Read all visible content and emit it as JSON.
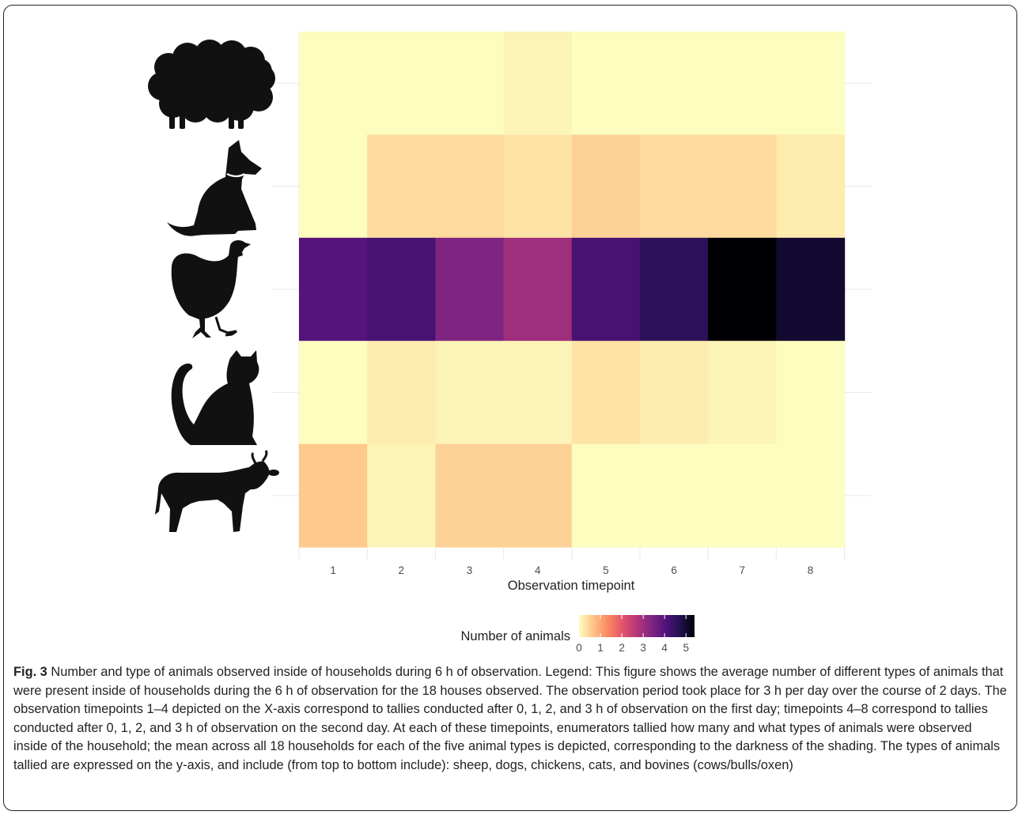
{
  "chart_data": {
    "type": "heatmap",
    "xlabel": "Observation timepoint",
    "x": [
      "1",
      "2",
      "3",
      "4",
      "5",
      "6",
      "7",
      "8"
    ],
    "rows": [
      {
        "icon": "sheep-icon",
        "values": [
          0.0,
          0.0,
          0.0,
          0.1,
          0.0,
          0.0,
          0.0,
          0.0
        ]
      },
      {
        "icon": "dog-icon",
        "values": [
          0.0,
          0.4,
          0.4,
          0.3,
          0.5,
          0.4,
          0.4,
          0.2
        ]
      },
      {
        "icon": "chicken-icon",
        "values": [
          4.0,
          4.2,
          3.4,
          3.0,
          4.2,
          4.6,
          5.4,
          5.0
        ]
      },
      {
        "icon": "cat-icon",
        "values": [
          0.0,
          0.2,
          0.1,
          0.1,
          0.3,
          0.2,
          0.1,
          0.0
        ]
      },
      {
        "icon": "cow-icon",
        "values": [
          0.6,
          0.1,
          0.5,
          0.5,
          0.0,
          0.0,
          0.0,
          0.0
        ]
      }
    ],
    "legend": {
      "title": "Number of animals",
      "ticks": [
        0,
        1,
        2,
        3,
        4,
        5
      ],
      "range": [
        0,
        5.4
      ],
      "colors": [
        "#fcfdbf",
        "#fec287",
        "#fb8861",
        "#e3556c",
        "#b6377a",
        "#812581",
        "#51127c",
        "#221150",
        "#000004"
      ]
    },
    "grid": true,
    "legend_position": "bottom"
  },
  "caption": {
    "label": "Fig. 3",
    "text": "Number and type of animals observed inside of households during 6 h of observation. Legend: This figure shows the average number of different types of animals that were present inside of households during the 6 h of observation for the 18 houses observed. The observation period took place for 3 h per day over the course of 2 days. The observation timepoints 1–4 depicted on the X-axis correspond to tallies conducted after 0, 1, 2, and 3 h of observation on the first day; timepoints 4–8 correspond to tallies conducted after 0, 1, 2, and 3 h of observation on the second day. At each of these timepoints, enumerators tallied how many and what types of animals were observed inside of the household; the mean across all 18 households for each of the five animal types is depicted, corresponding to the darkness of the shading. The types of animals tallied are expressed on the y-axis, and include (from top to bottom include): sheep, dogs, chickens, cats, and bovines (cows/bulls/oxen)"
  }
}
